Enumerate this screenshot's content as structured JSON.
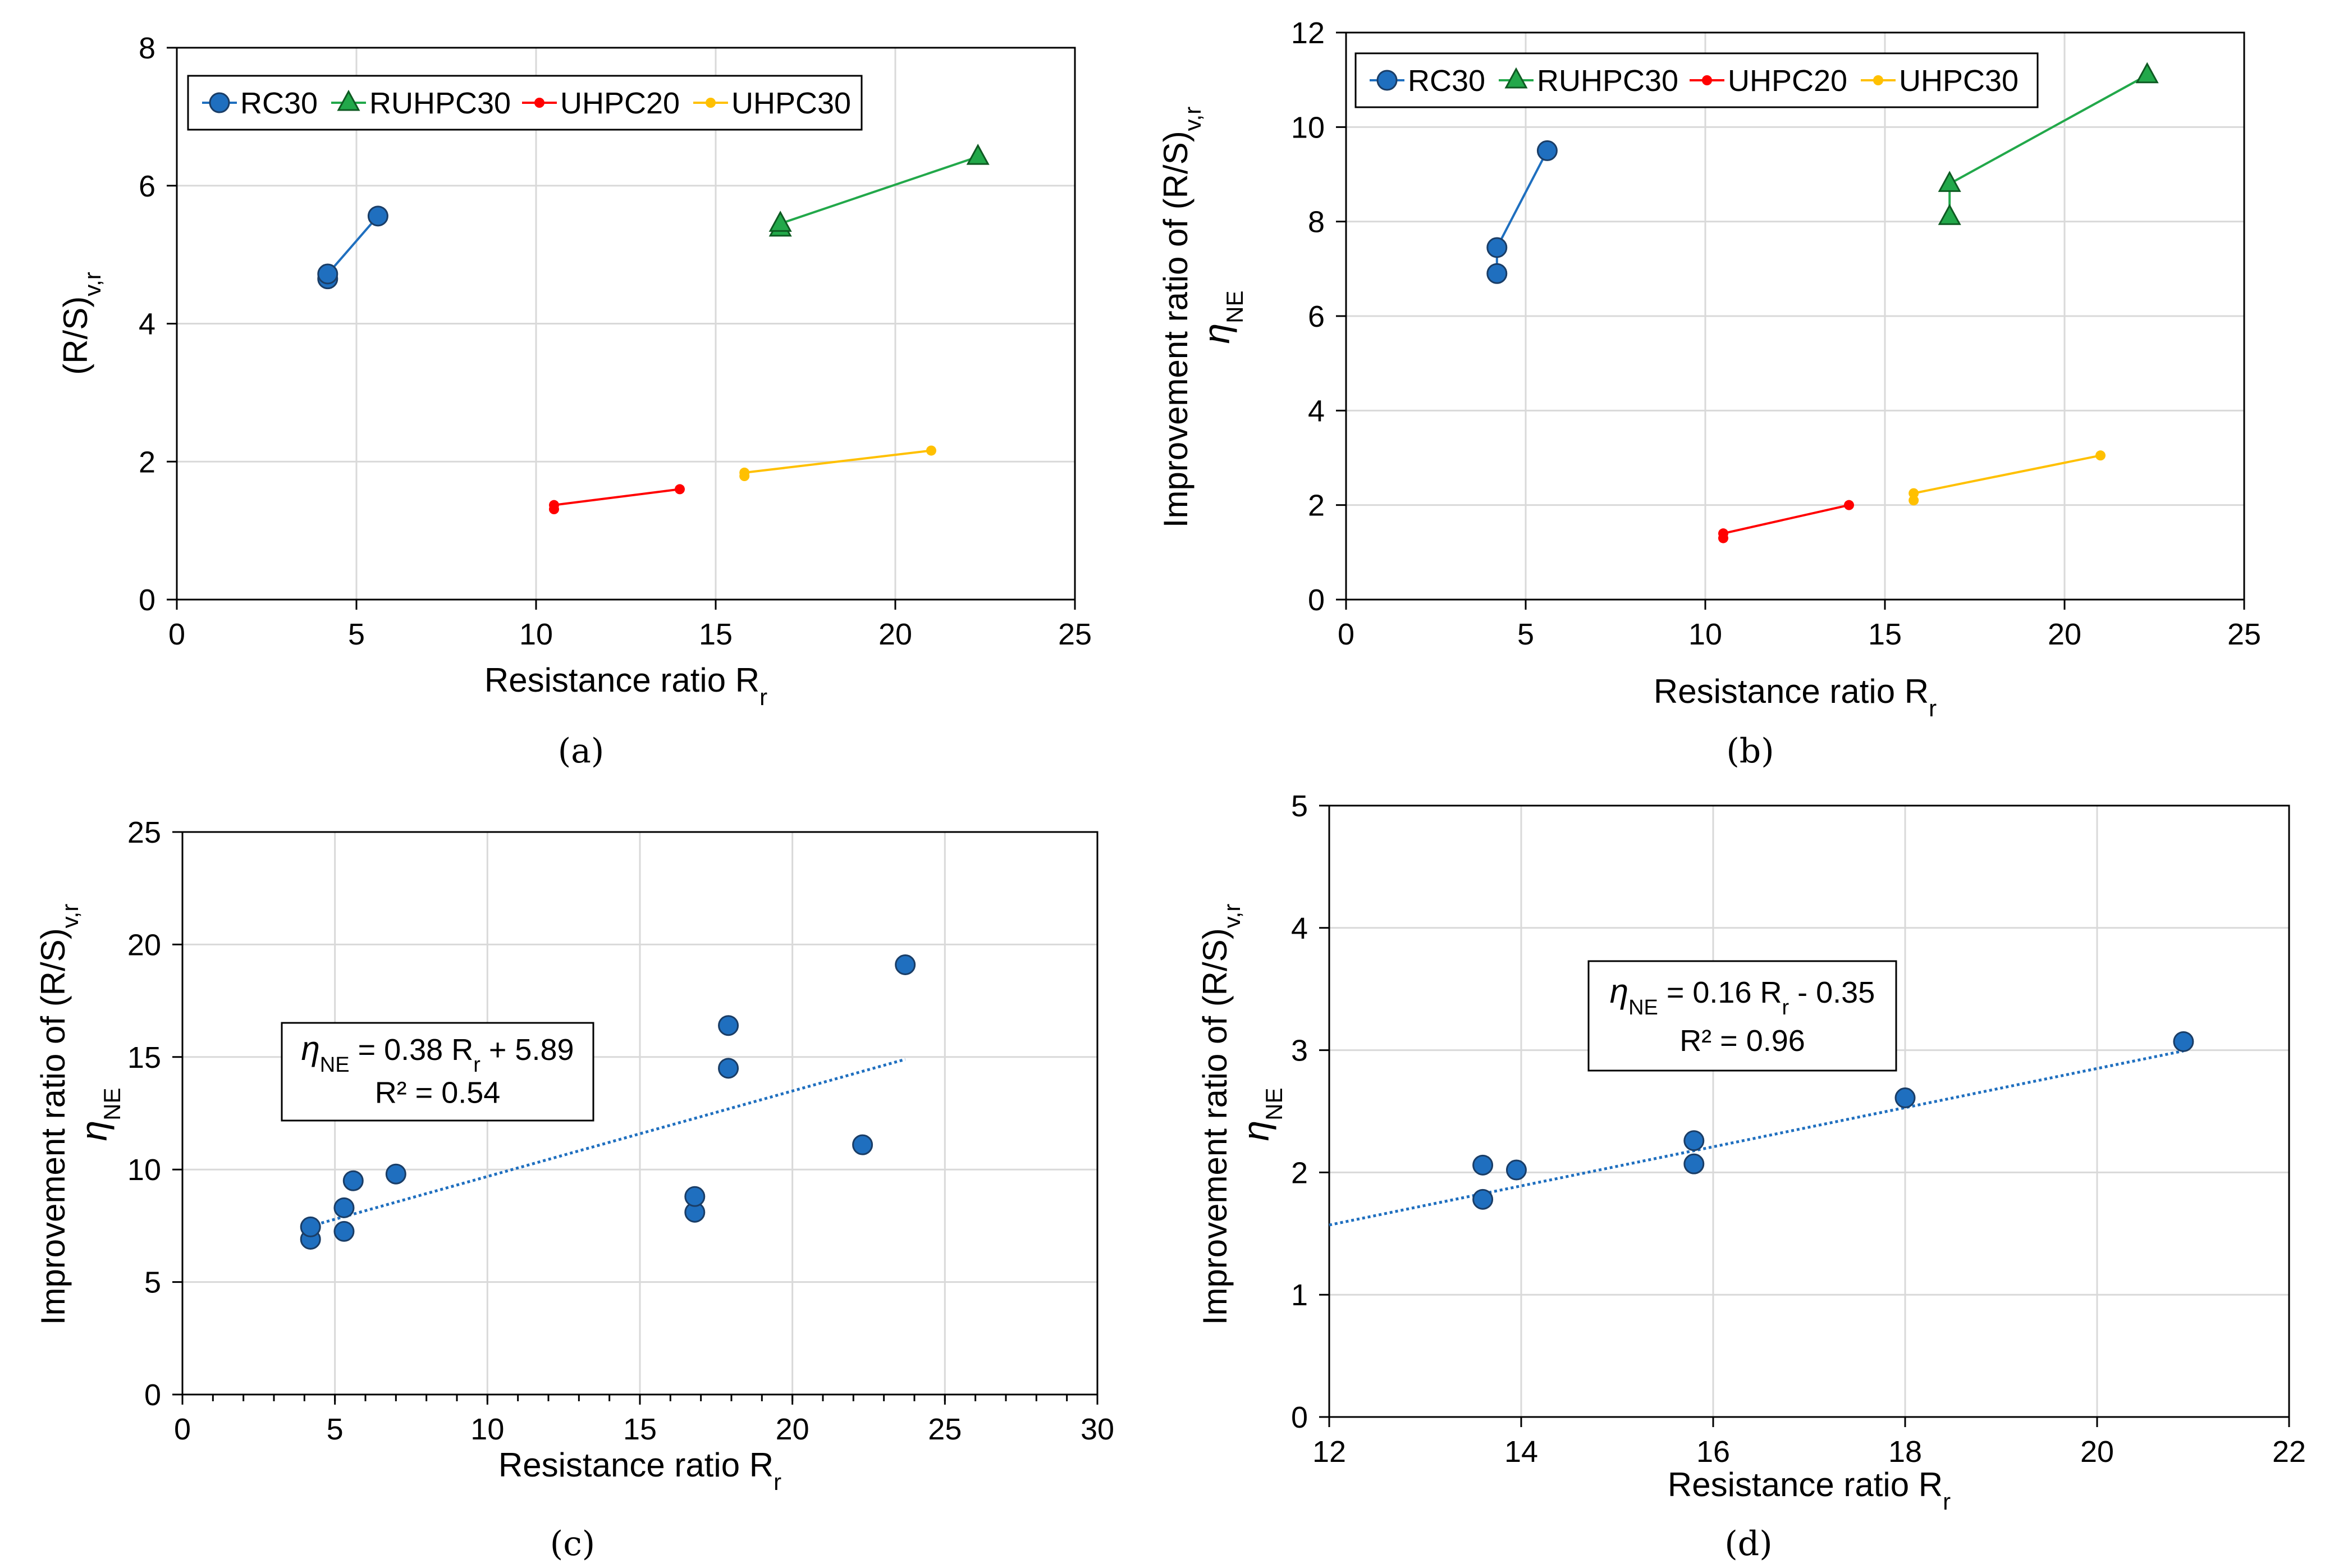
{
  "chart_data": [
    {
      "id": "a",
      "type": "line",
      "caption": "(a)",
      "xlabel": "Resistance ratio R",
      "xlabel_sub": "r",
      "ylabel": "(R/S)",
      "ylabel_sub": "v,r",
      "xlim": [
        0,
        25
      ],
      "ylim": [
        0,
        8
      ],
      "xticks": [
        "0",
        "5",
        "10",
        "15",
        "20",
        "25"
      ],
      "yticks": [
        "0",
        "2",
        "4",
        "6",
        "8"
      ],
      "legend_position": "top-left",
      "series": [
        {
          "name": "RC30",
          "color": "#1f6fbf",
          "marker": "circle",
          "x": [
            4.2,
            4.2,
            5.6
          ],
          "y": [
            4.65,
            4.72,
            5.56
          ]
        },
        {
          "name": "RUHPC30",
          "color": "#22a84a",
          "marker": "triangle",
          "x": [
            16.8,
            16.8,
            22.3
          ],
          "y": [
            5.38,
            5.45,
            6.42
          ]
        },
        {
          "name": "UHPC20",
          "color": "#ff0000",
          "marker": "dot",
          "x": [
            10.5,
            10.5,
            14.0
          ],
          "y": [
            1.31,
            1.37,
            1.6
          ]
        },
        {
          "name": "UHPC30",
          "color": "#ffc000",
          "marker": "dot",
          "x": [
            15.8,
            15.8,
            21.0
          ],
          "y": [
            1.79,
            1.84,
            2.16
          ]
        }
      ]
    },
    {
      "id": "b",
      "type": "line",
      "caption": "(b)",
      "xlabel": "Resistance ratio R",
      "xlabel_sub": "r",
      "ylabel": "Improvement ratio of (R/S)",
      "ylabel_sub": "v,r",
      "ylabel2": "η",
      "ylabel2_sub": "NE",
      "xlim": [
        0,
        25
      ],
      "ylim": [
        0,
        12
      ],
      "xticks": [
        "0",
        "5",
        "10",
        "15",
        "20",
        "25"
      ],
      "yticks": [
        "0",
        "2",
        "4",
        "6",
        "8",
        "10",
        "12"
      ],
      "legend_position": "top-left",
      "series": [
        {
          "name": "RC30",
          "color": "#1f6fbf",
          "marker": "circle",
          "x": [
            4.2,
            4.2,
            5.6
          ],
          "y": [
            6.9,
            7.45,
            9.5
          ]
        },
        {
          "name": "RUHPC30",
          "color": "#22a84a",
          "marker": "triangle",
          "x": [
            16.8,
            16.8,
            22.3
          ],
          "y": [
            8.1,
            8.8,
            11.1
          ]
        },
        {
          "name": "UHPC20",
          "color": "#ff0000",
          "marker": "dot",
          "x": [
            10.5,
            10.5,
            14.0
          ],
          "y": [
            1.3,
            1.4,
            2.0
          ]
        },
        {
          "name": "UHPC30",
          "color": "#ffc000",
          "marker": "dot",
          "x": [
            15.8,
            15.8,
            21.0
          ],
          "y": [
            2.1,
            2.25,
            3.05
          ]
        }
      ]
    },
    {
      "id": "c",
      "type": "scatter",
      "caption": "(c)",
      "xlabel": "Resistance ratio R",
      "xlabel_sub": "r",
      "ylabel": "Improvement ratio of (R/S)",
      "ylabel_sub": "v,r",
      "ylabel2": "η",
      "ylabel2_sub": "NE",
      "xlim": [
        0,
        30
      ],
      "ylim": [
        0,
        25
      ],
      "xticks": [
        "0",
        "5",
        "10",
        "15",
        "20",
        "25",
        "30"
      ],
      "yticks": [
        "0",
        "5",
        "10",
        "15",
        "20",
        "25"
      ],
      "color": "#1f6fbf",
      "x": [
        4.2,
        4.2,
        5.3,
        5.3,
        5.6,
        7.0,
        16.8,
        16.8,
        17.9,
        17.9,
        22.3,
        23.7
      ],
      "y": [
        6.9,
        7.45,
        7.25,
        8.3,
        9.5,
        9.8,
        8.1,
        8.8,
        14.5,
        16.4,
        11.1,
        19.1
      ],
      "trendline": {
        "x": [
          4.2,
          23.7
        ],
        "slope": 0.38,
        "intercept": 5.89
      },
      "equation": {
        "lhs": "η",
        "lhs_sub": "NE",
        "mid": " = 0.38 R",
        "mid_sub": "r",
        "rhs": " + 5.89",
        "r2": "R² = 0.54"
      }
    },
    {
      "id": "d",
      "type": "scatter",
      "caption": "(d)",
      "xlabel": "Resistance ratio R",
      "xlabel_sub": "r",
      "ylabel": "Improvement ratio of (R/S)",
      "ylabel_sub": "v,r",
      "ylabel2": "η",
      "ylabel2_sub": "NE",
      "xlim": [
        12,
        22
      ],
      "ylim": [
        0,
        5
      ],
      "xticks": [
        "12",
        "14",
        "16",
        "18",
        "20",
        "22"
      ],
      "yticks": [
        "0",
        "1",
        "2",
        "3",
        "4",
        "5"
      ],
      "color": "#1f6fbf",
      "x": [
        13.6,
        13.6,
        13.95,
        15.8,
        15.8,
        18.0,
        20.9
      ],
      "y": [
        1.78,
        2.06,
        2.02,
        2.07,
        2.26,
        2.61,
        3.07
      ],
      "trendline": {
        "x": [
          12,
          20.9
        ],
        "slope": 0.16,
        "intercept": -0.35
      },
      "equation": {
        "lhs": "η",
        "lhs_sub": "NE",
        "mid": " = 0.16 R",
        "mid_sub": "r",
        "rhs": " - 0.35",
        "r2": "R² = 0.96"
      }
    }
  ]
}
